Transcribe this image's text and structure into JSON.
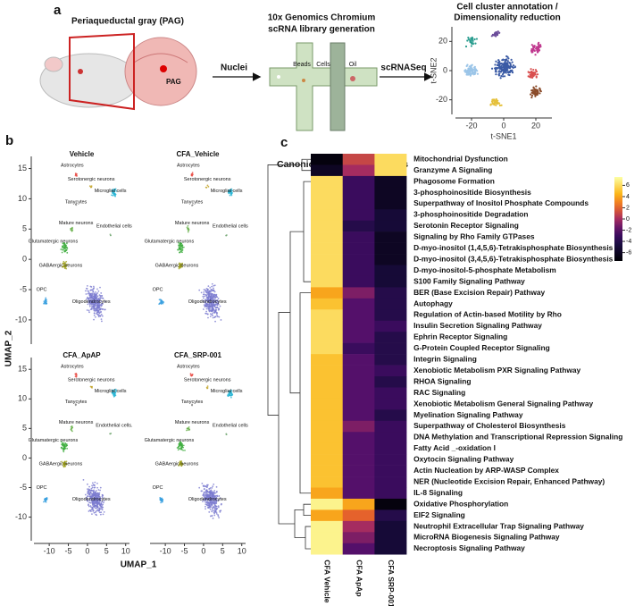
{
  "panel_a": {
    "label": "a",
    "region_label": "Periaqueductal gray (PAG)",
    "pag_label": "PAG",
    "arrow1": "Nuclei",
    "step2_title": [
      "10x Genomics Chromium",
      "scRNA library generation"
    ],
    "chip_labels": [
      "Beads",
      "Cells",
      "Oil"
    ],
    "arrow2": "scRNASeq",
    "step3_title": [
      "Cell cluster annotation /",
      "Dimensionality reduction"
    ],
    "tsne": {
      "xlabel": "t-SNE1",
      "ylabel": "t-SNE2",
      "xlim": [
        -30,
        30
      ],
      "ylim": [
        -30,
        30
      ],
      "xticks": [
        -20,
        0,
        20
      ],
      "yticks": [
        -20,
        0,
        20
      ]
    }
  },
  "panel_b": {
    "label": "b",
    "xlabel": "UMAP_1",
    "ylabel": "UMAP_2",
    "xlim": [
      -14,
      11
    ],
    "ylim": [
      -14,
      17
    ],
    "xticks": [
      -10,
      -5,
      0,
      5,
      10
    ],
    "yticks": [
      -10,
      -5,
      0,
      5,
      10,
      15
    ],
    "plots": [
      {
        "title": "Vehicle",
        "cells": [
          "Astrocytes",
          "Serotonergic neurons",
          "Microglial cells",
          "Tanycytes",
          "Mature neurons",
          "Glutamatergic neurons",
          "Endothelial cells",
          "GABAergic neurons",
          "OPC",
          "Oligodendrocytes"
        ]
      },
      {
        "title": "CFA_Vehicle",
        "cells": [
          "Astrocytes",
          "Serotonergic neurons",
          "Microglial cells",
          "Tanycytes",
          "Mature neurons",
          "Glutamatergic neurons",
          "Endothelial cells",
          "GABAergic neurons",
          "OPC",
          "Oligodendrocytes"
        ]
      },
      {
        "title": "CFA_ApAP",
        "cells": [
          "Astrocytes",
          "Serotonergic neurons",
          "Microglial cells",
          "Tanycytes",
          "Mature neurons",
          "Glutamatergic neurons",
          "Endothelial cells.",
          "GABAergic neurons",
          "OPC",
          "Oligodendrocytes"
        ]
      },
      {
        "title": "CFA_SRP-001",
        "cells": [
          "Astrocytes",
          "Serotonergic neurons",
          "Microglial cells",
          "Tanycytes",
          "Mature neurons",
          "Glutamatergic neurons",
          "Endothelial cells",
          "GABAergic neurons",
          "OPC",
          "Oligodendrocytes"
        ]
      }
    ]
  },
  "panel_c": {
    "label": "c",
    "title": "Canonical Pathways Neurons",
    "columns": [
      "CFA Vehicle",
      "CFA ApAp",
      "CFA SRP-001"
    ],
    "rows": [
      "Mitochondrial Dysfunction",
      "Granzyme A Signaling",
      "Phagosome Formation",
      "3-phosphoinositide Biosynthesis",
      "Superpathway of Inositol Phosphate Compounds",
      "3-phosphoinositide Degradation",
      "Serotonin Receptor Signaling",
      "Signaling by Rho Family GTPases",
      "D-myo-inositol (1,4,5,6)-Tetrakisphosphate Biosynthesis",
      "D-myo-inositol (3,4,5,6)-Tetrakisphosphate Biosynthesis",
      "D-myo-inositol-5-phosphate Metabolism",
      "S100 Family Signaling Pathway",
      "BER (Base Excision Repair) Pathway",
      "Autophagy",
      "Regulation of Actin-based Motility by Rho",
      "Insulin Secretion Signaling Pathway",
      "Ephrin Receptor Signaling",
      "G-Protein Coupled Receptor Signaling",
      "Integrin Signaling",
      "Xenobiotic Metabolism PXR Signaling Pathway",
      "RHOA Signaling",
      "RAC Signaling",
      "Xenobiotic Metabolism General Signaling Pathway",
      "Myelination Signaling Pathway",
      "Superpathway of Cholesterol Biosynthesis",
      "DNA Methylation and Transcriptional Repression Signaling",
      "Fatty Acid _-oxidation I",
      "Oxytocin Signaling Pathway",
      "Actin Nucleation by ARP-WASP Complex",
      "NER (Nucleotide Excision Repair, Enhanced Pathway)",
      "IL-8 Signaling",
      "Oxidative Phosphorylation",
      "EIF2 Signaling",
      "Neutrophil Extracellular Trap Signaling Pathway",
      "MicroRNA Biogenesis Signaling Pathway",
      "Necroptosis Signaling Pathway"
    ],
    "values": [
      [
        -7,
        1,
        6
      ],
      [
        -6,
        0,
        6
      ],
      [
        6,
        -3,
        -6
      ],
      [
        6,
        -3,
        -6
      ],
      [
        6,
        -3,
        -6
      ],
      [
        6,
        -3,
        -5
      ],
      [
        6,
        -4,
        -5
      ],
      [
        6,
        -3,
        -6
      ],
      [
        6,
        -3,
        -6
      ],
      [
        6,
        -3,
        -6
      ],
      [
        6,
        -3,
        -5
      ],
      [
        6,
        -3,
        -5
      ],
      [
        4,
        -1,
        -4
      ],
      [
        5,
        -2,
        -4
      ],
      [
        6,
        -2,
        -4
      ],
      [
        6,
        -2,
        -3
      ],
      [
        6,
        -2,
        -4
      ],
      [
        6,
        -3,
        -4
      ],
      [
        5,
        -2,
        -4
      ],
      [
        5,
        -2,
        -3
      ],
      [
        5,
        -2,
        -4
      ],
      [
        5,
        -2,
        -3
      ],
      [
        5,
        -2,
        -3
      ],
      [
        5,
        -2,
        -4
      ],
      [
        5,
        -1,
        -3
      ],
      [
        5,
        -2,
        -3
      ],
      [
        5,
        -2,
        -3
      ],
      [
        5,
        -2,
        -3
      ],
      [
        5,
        -2,
        -3
      ],
      [
        5,
        -2,
        -3
      ],
      [
        4,
        -2,
        -3
      ],
      [
        7,
        4,
        -7
      ],
      [
        4,
        2,
        -4
      ],
      [
        7,
        0,
        -5
      ],
      [
        7,
        -1,
        -5
      ],
      [
        7,
        -2,
        -5
      ]
    ],
    "colorbar": {
      "lim": [
        -7.5,
        7.5
      ],
      "ticks": [
        -6,
        -4,
        -2,
        0,
        2,
        4,
        6
      ]
    }
  }
}
